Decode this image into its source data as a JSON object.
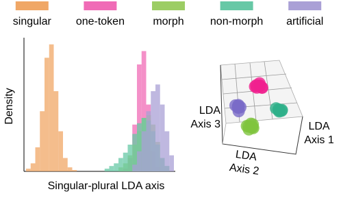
{
  "chart_data": [
    {
      "type": "histogram",
      "xlabel": "Singular-plural LDA axis",
      "ylabel": "Density",
      "bins": [
        0,
        1,
        2,
        3,
        4,
        5,
        6,
        7,
        8,
        9,
        10,
        11,
        12,
        13,
        14,
        15,
        16,
        17,
        18,
        19,
        20,
        21,
        22,
        23,
        24,
        25,
        26,
        27,
        28,
        29,
        30,
        31,
        32
      ],
      "xlim": [
        0,
        32
      ],
      "ylim": [
        0,
        1
      ],
      "series": [
        {
          "name": "singular",
          "color": "#f0a766",
          "values": [
            0.02,
            0.06,
            0.18,
            0.45,
            0.85,
            0.95,
            0.6,
            0.3,
            0.1,
            0.03,
            0.01,
            0,
            0,
            0,
            0,
            0,
            0,
            0,
            0,
            0,
            0,
            0,
            0,
            0,
            0,
            0,
            0,
            0,
            0,
            0,
            0,
            0
          ]
        },
        {
          "name": "one-token",
          "color": "#f06bb6",
          "values": [
            0,
            0,
            0,
            0,
            0,
            0,
            0,
            0,
            0,
            0,
            0,
            0,
            0,
            0,
            0,
            0,
            0,
            0,
            0,
            0,
            0,
            0.02,
            0.1,
            0.35,
            0.8,
            0.9,
            0.5,
            0.15,
            0.03,
            0,
            0,
            0
          ]
        },
        {
          "name": "morph",
          "color": "#9ccd64",
          "values": [
            0,
            0,
            0,
            0,
            0,
            0,
            0,
            0,
            0,
            0,
            0,
            0,
            0,
            0,
            0,
            0,
            0,
            0,
            0,
            0,
            0.03,
            0.06,
            0.12,
            0.2,
            0.3,
            0.4,
            0.42,
            0.35,
            0.22,
            0.1,
            0.04,
            0
          ]
        },
        {
          "name": "non-morph",
          "color": "#67c8a6",
          "values": [
            0,
            0,
            0,
            0,
            0,
            0,
            0,
            0,
            0,
            0,
            0,
            0,
            0,
            0,
            0,
            0,
            0,
            0.02,
            0.04,
            0.06,
            0.1,
            0.14,
            0.2,
            0.28,
            0.36,
            0.4,
            0.38,
            0.3,
            0.2,
            0.1,
            0.04,
            0
          ]
        },
        {
          "name": "artificial",
          "color": "#aaa0d6",
          "values": [
            0,
            0,
            0,
            0,
            0,
            0,
            0,
            0,
            0,
            0,
            0,
            0,
            0,
            0,
            0,
            0,
            0,
            0,
            0,
            0,
            0,
            0,
            0,
            0.05,
            0.15,
            0.3,
            0.45,
            0.6,
            0.65,
            0.5,
            0.3,
            0.12
          ]
        }
      ]
    },
    {
      "type": "scatter3d",
      "xlabel": "LDA Axis 1",
      "ylabel": "LDA Axis 2",
      "zlabel": "LDA Axis 3",
      "series": [
        {
          "color": "#f0218f",
          "x": [
            0.05,
            -0.1,
            0.12,
            -0.05,
            0.0,
            0.1,
            -0.12,
            0.04
          ],
          "y": [
            0.0,
            0.1,
            -0.05,
            -0.1,
            0.12,
            0.08,
            0.0,
            -0.12
          ],
          "z": [
            1.35,
            1.3,
            1.25,
            1.4,
            1.28,
            1.38,
            1.32,
            1.22
          ]
        },
        {
          "color": "#7fc43f",
          "x": [
            0.05,
            -0.08,
            0.1,
            -0.05,
            0.0,
            0.12,
            -0.1,
            0.02
          ],
          "y": [
            0.5,
            0.6,
            0.45,
            0.4,
            0.58,
            0.52,
            0.48,
            0.38
          ],
          "z": [
            -0.5,
            -0.45,
            -0.55,
            -0.4,
            -0.6,
            -0.48,
            -0.52,
            -0.42
          ]
        },
        {
          "color": "#2fb08a",
          "x": [
            1.0,
            1.1,
            0.9,
            1.05,
            0.95,
            1.12,
            0.88,
            1.02
          ],
          "y": [
            0.0,
            0.1,
            -0.1,
            0.12,
            -0.05,
            0.02,
            0.05,
            -0.12
          ],
          "z": [
            0.4,
            0.45,
            0.35,
            0.5,
            0.32,
            0.42,
            0.48,
            0.38
          ]
        },
        {
          "color": "#7a6cc8",
          "x": [
            -1.0,
            -0.9,
            -1.1,
            -0.95,
            -1.05,
            -0.88,
            -1.12,
            -1.0
          ],
          "y": [
            0.0,
            0.1,
            -0.1,
            0.05,
            -0.05,
            0.12,
            0.02,
            -0.12
          ],
          "z": [
            0.0,
            0.1,
            -0.05,
            0.15,
            0.05,
            -0.1,
            0.08,
            -0.02
          ]
        }
      ]
    }
  ]
}
